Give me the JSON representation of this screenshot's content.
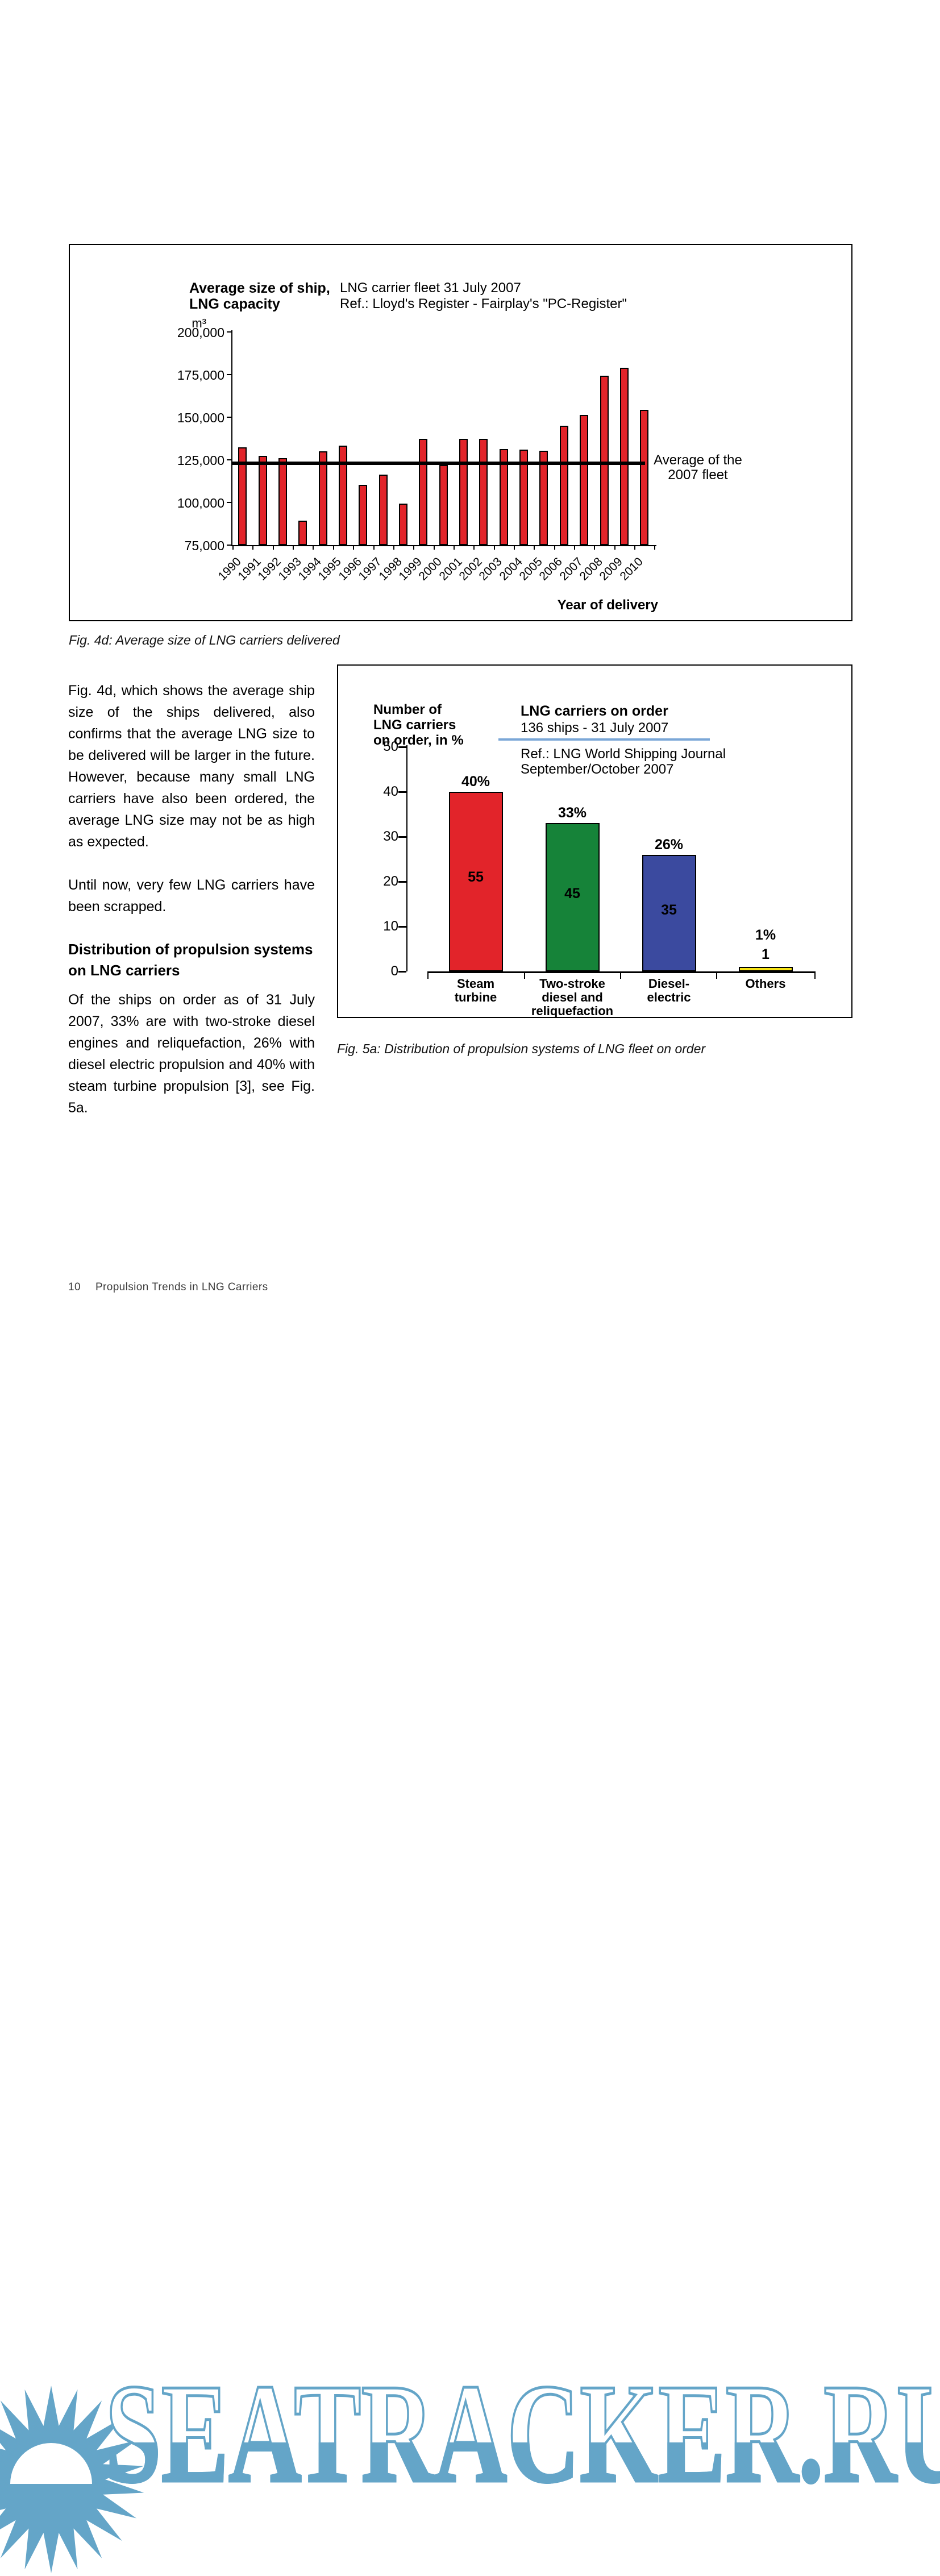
{
  "colors": {
    "bar_red": "#e2242a",
    "bar_green": "#168339",
    "bar_blue": "#3b4a9f",
    "bar_yellow": "#f8e515",
    "divider_blue": "#7ba7d7",
    "watermark_blue": "#64a5c8",
    "average_line": "#000000"
  },
  "fig4d": {
    "title_left_line1": "Average size of ship,",
    "title_left_line2": "LNG capacity",
    "unit": "m³",
    "title_right_line1": "LNG carrier fleet 31 July 2007",
    "title_right_line2": "Ref.: Lloyd's Register - Fairplay's \"PC-Register\"",
    "annotation_line1": "Average of the",
    "annotation_line2": "2007 fleet",
    "x_axis_label": "Year of delivery",
    "caption": "Fig. 4d: Average size of LNG carriers delivered"
  },
  "fig5a": {
    "ylabel_line1": "Number of",
    "ylabel_line2": "LNG carriers",
    "ylabel_line3": "on order, in %",
    "title": "LNG carriers on order",
    "subtitle": "136 ships - 31 July 2007",
    "ref_line1": "Ref.: LNG World Shipping Journal",
    "ref_line2": "September/October 2007",
    "caption": "Fig. 5a: Distribution of propulsion systems of LNG fleet on order"
  },
  "body": {
    "paragraph1": "Fig. 4d, which shows the average ship size of the ships delivered, also confirms that the average LNG size to be delivered will be larger in the future. However, because many small LNG carriers have also been ordered, the average LNG size may not be as high as expected.",
    "paragraph2": "Until now, very few LNG carriers have been scrapped.",
    "heading": "Distribution of propulsion systems on LNG carriers",
    "paragraph3": "Of the ships on order as of 31 July 2007, 33% are with two-stroke diesel engines and reliquefaction, 26% with diesel electric propulsion and 40% with steam turbine propulsion [3], see Fig. 5a."
  },
  "footer": {
    "page_number": "10",
    "doc_title": "Propulsion Trends in LNG Carriers"
  },
  "watermark": {
    "text": "SEATRACKER.RU"
  },
  "chart_data": [
    {
      "type": "bar",
      "title": "Average size of LNG carriers delivered",
      "xlabel": "Year of delivery",
      "ylabel": "Average size of ship, LNG capacity (m³)",
      "ylim": [
        75000,
        200000
      ],
      "grid": false,
      "x": [
        "1990",
        "1991",
        "1992",
        "1993",
        "1994",
        "1995",
        "1996",
        "1997",
        "1998",
        "1999",
        "2000",
        "2001",
        "2002",
        "2003",
        "2004",
        "2005",
        "2006",
        "2007",
        "2008",
        "2009",
        "2010"
      ],
      "values": [
        132500,
        127500,
        126000,
        89500,
        130000,
        133500,
        110500,
        116500,
        99500,
        137500,
        122000,
        137500,
        137500,
        131500,
        131000,
        130500,
        145000,
        151500,
        174500,
        179000,
        154500
      ],
      "y_ticks": [
        {
          "label": "200,000",
          "value": 200000
        },
        {
          "label": "175,000",
          "value": 175000
        },
        {
          "label": "150,000",
          "value": 150000
        },
        {
          "label": "125,000",
          "value": 125000
        },
        {
          "label": "100,000",
          "value": 100000
        },
        {
          "label": "75,000",
          "value": 75000
        }
      ],
      "average_line_value": 123000,
      "average_line_label": "Average of the 2007 fleet",
      "bar_color": "#e2242a"
    },
    {
      "type": "bar",
      "title": "LNG carriers on order",
      "subtitle": "136 ships - 31 July 2007",
      "ylabel": "Number of LNG carriers on order, in %",
      "ylim": [
        0,
        50
      ],
      "grid": false,
      "y_ticks": [
        "50",
        "40",
        "30",
        "20",
        "10",
        "0"
      ],
      "bars": [
        {
          "category": "Steam turbine",
          "label_lines": [
            "Steam",
            "turbine"
          ],
          "pct": 40,
          "pct_label": "40%",
          "count": 55,
          "color": "#e2242a"
        },
        {
          "category": "Two-stroke diesel and reliquefaction",
          "label_lines": [
            "Two-stroke",
            "diesel and",
            "reliquefaction"
          ],
          "pct": 33,
          "pct_label": "33%",
          "count": 45,
          "color": "#168339"
        },
        {
          "category": "Diesel-electric",
          "label_lines": [
            "Diesel-",
            "electric"
          ],
          "pct": 26,
          "pct_label": "26%",
          "count": 35,
          "color": "#3b4a9f"
        },
        {
          "category": "Others",
          "label_lines": [
            "Others"
          ],
          "pct": 1,
          "pct_label": "1%",
          "count": 1,
          "color": "#f8e515"
        }
      ]
    }
  ]
}
